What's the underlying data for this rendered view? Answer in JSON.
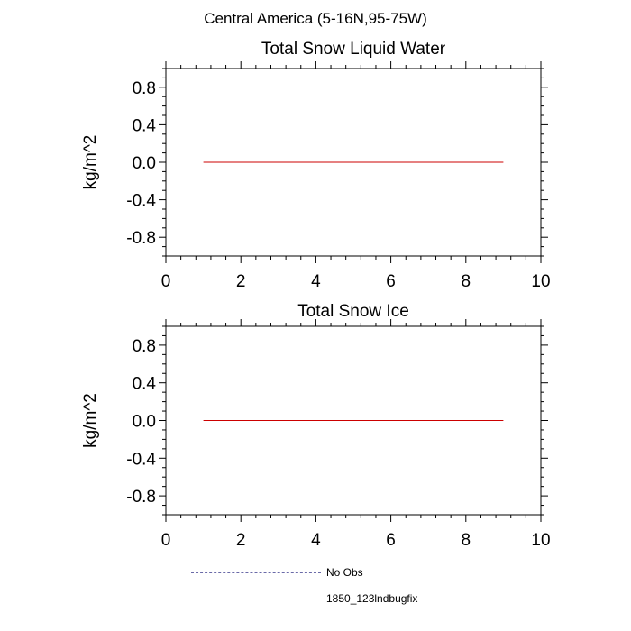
{
  "figure_title": "Central America (5-16N,95-75W)",
  "chart_data": [
    {
      "type": "line",
      "title": "Total Snow Liquid Water",
      "xlabel": "",
      "ylabel": "kg/m^2",
      "xlim": [
        0,
        10
      ],
      "ylim": [
        -1,
        1
      ],
      "xticks": [
        "0",
        "2",
        "4",
        "6",
        "8",
        "10"
      ],
      "yticks": [
        "0.8",
        "0.4",
        "0.0",
        "-0.4",
        "-0.8"
      ],
      "series": [
        {
          "name": "1850_123lndbugfix",
          "color": "#cc0000",
          "x": [
            1,
            2,
            3,
            4,
            5,
            6,
            7,
            8,
            9
          ],
          "y": [
            0,
            0,
            0,
            0,
            0,
            0,
            0,
            0,
            0
          ]
        }
      ]
    },
    {
      "type": "line",
      "title": "Total Snow Ice",
      "xlabel": "",
      "ylabel": "kg/m^2",
      "xlim": [
        0,
        10
      ],
      "ylim": [
        -1,
        1
      ],
      "xticks": [
        "0",
        "2",
        "4",
        "6",
        "8",
        "10"
      ],
      "yticks": [
        "0.8",
        "0.4",
        "0.0",
        "-0.4",
        "-0.8"
      ],
      "series": [
        {
          "name": "1850_123lndbugfix",
          "color": "#cc0000",
          "x": [
            1,
            2,
            3,
            4,
            5,
            6,
            7,
            8,
            9
          ],
          "y": [
            0,
            0,
            0,
            0,
            0,
            0,
            0,
            0,
            0
          ]
        }
      ]
    }
  ],
  "legend": [
    {
      "label": "No Obs",
      "color": "#6a6aa8",
      "style": "dashed"
    },
    {
      "label": "1850_123lndbugfix",
      "color": "#ff6a6a",
      "style": "solid"
    }
  ]
}
